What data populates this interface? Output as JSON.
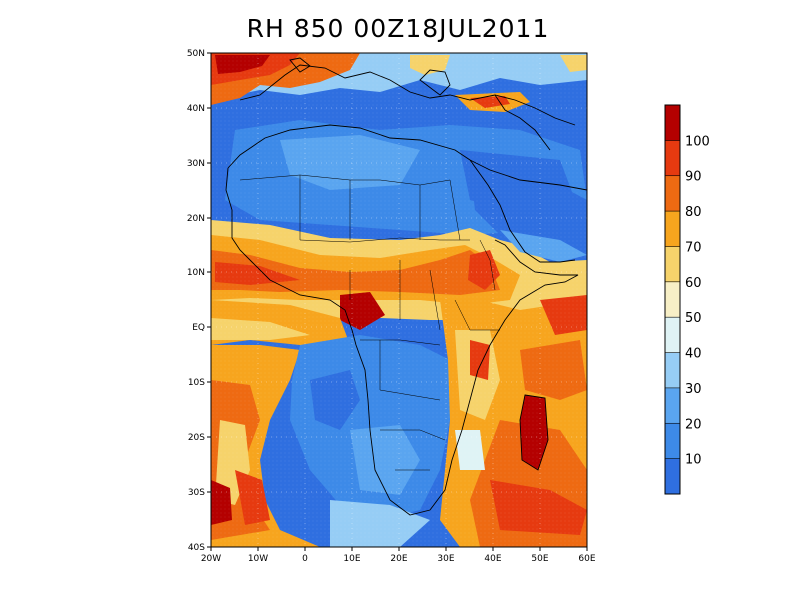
{
  "title": "RH 850  00Z18JUL2011",
  "axes": {
    "lon_labels": [
      "20W",
      "10W",
      "0",
      "10E",
      "20E",
      "30E",
      "40E",
      "50E",
      "60E"
    ],
    "lat_labels": [
      "50N",
      "40N",
      "30N",
      "20N",
      "10N",
      "EQ",
      "10S",
      "20S",
      "30S",
      "40S"
    ],
    "lon_range": [
      -20,
      60
    ],
    "lat_range": [
      -40,
      50
    ],
    "grid": "dotted"
  },
  "colorbar": {
    "labels": [
      "10",
      "20",
      "30",
      "40",
      "50",
      "60",
      "70",
      "80",
      "90",
      "100"
    ],
    "colors": [
      "#2f6fe0",
      "#3d8ae8",
      "#5aa5f0",
      "#96cdf5",
      "#dff3f5",
      "#f7efc6",
      "#f6d36b",
      "#f7a51e",
      "#ee6a12",
      "#e63a10",
      "#b40000"
    ]
  }
}
